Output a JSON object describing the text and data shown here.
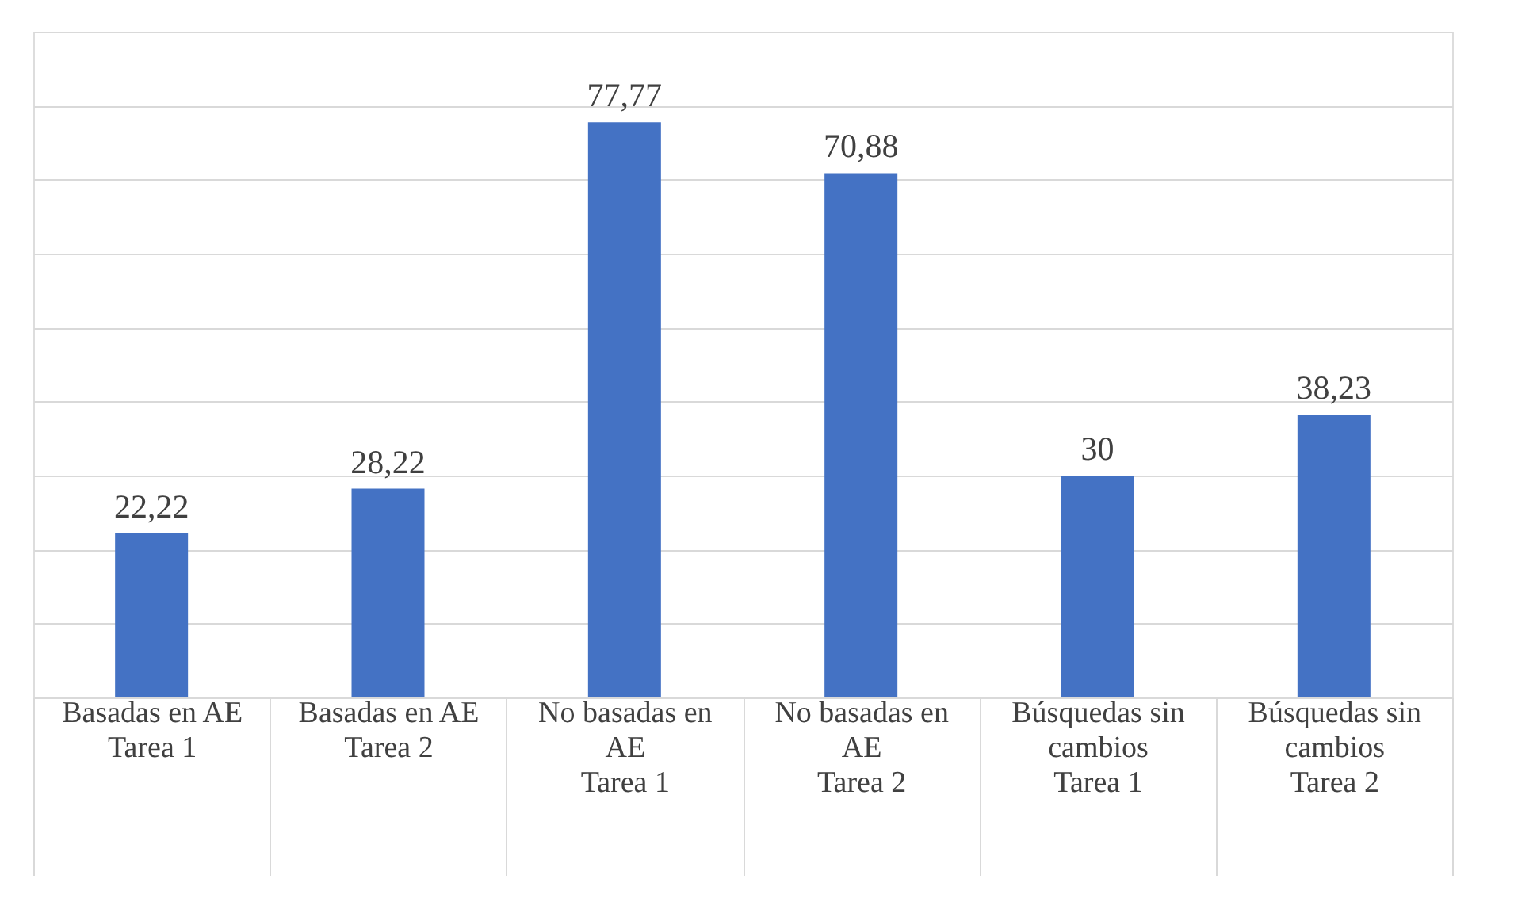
{
  "chart_data": {
    "type": "bar",
    "categories": [
      "Basadas en AE\nTarea 1",
      "Basadas en AE\nTarea 2",
      "No basadas en AE\nTarea 1",
      "No basadas en AE\nTarea 2",
      "Búsquedas sin cambios\nTarea 1",
      "Búsquedas sin cambios\nTarea 2"
    ],
    "values": [
      22.22,
      28.22,
      77.77,
      70.88,
      30,
      38.23
    ],
    "color": "#4472c4",
    "value_labels": [
      "22,22",
      "28,22",
      "77,77",
      "70,88",
      "30",
      "38,23"
    ],
    "ylim": [
      0,
      90
    ],
    "yticks": [
      {
        "value": 0,
        "label": null
      },
      {
        "value": 10,
        "label": null
      },
      {
        "value": 20,
        "label": null
      },
      {
        "value": 30,
        "label": null
      },
      {
        "value": 40,
        "label": null
      },
      {
        "value": 50,
        "label": null
      },
      {
        "value": 60,
        "label": null
      },
      {
        "value": 70,
        "label": null
      },
      {
        "value": 80,
        "label": null
      },
      {
        "value": 90,
        "label": null
      }
    ],
    "grid": "y",
    "tick_labels": "x"
  }
}
